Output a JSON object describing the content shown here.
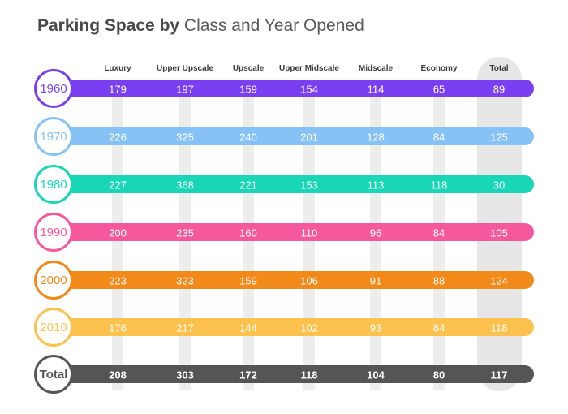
{
  "title": {
    "bold": "Parking Space by",
    "light": "Class and Year Opened"
  },
  "chart_data": {
    "type": "table",
    "title": "Parking Space by Class and Year Opened",
    "columns": [
      "Luxury",
      "Upper Upscale",
      "Upscale",
      "Upper Midscale",
      "Midscale",
      "Economy",
      "Total"
    ],
    "rows": [
      {
        "label": "1960",
        "color": "#7a3ff0",
        "values": [
          "179",
          "197",
          "159",
          "154",
          "114",
          "65",
          "89"
        ]
      },
      {
        "label": "1970",
        "color": "#86c2f6",
        "values": [
          "226",
          "325",
          "240",
          "201",
          "128",
          "84",
          "125"
        ]
      },
      {
        "label": "1980",
        "color": "#19d6b6",
        "values": [
          "227",
          "368",
          "221",
          "153",
          "113",
          "118",
          "30"
        ]
      },
      {
        "label": "1990",
        "color": "#f5599c",
        "values": [
          "200",
          "235",
          "160",
          "110",
          "96",
          "84",
          "105"
        ]
      },
      {
        "label": "2000",
        "color": "#f28a19",
        "values": [
          "223",
          "323",
          "159",
          "106",
          "91",
          "88",
          "124"
        ]
      },
      {
        "label": "2010",
        "color": "#fdc24d",
        "values": [
          "176",
          "217",
          "144",
          "102",
          "93",
          "84",
          "118"
        ]
      },
      {
        "label": "Total",
        "color": "#555555",
        "values": [
          "208",
          "303",
          "172",
          "118",
          "104",
          "80",
          "117"
        ]
      }
    ]
  }
}
